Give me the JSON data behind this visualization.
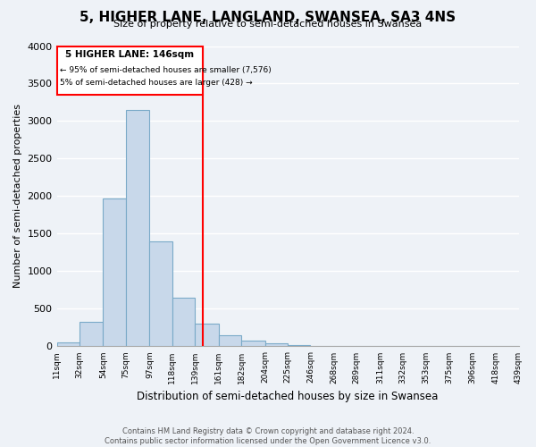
{
  "title": "5, HIGHER LANE, LANGLAND, SWANSEA, SA3 4NS",
  "subtitle": "Size of property relative to semi-detached houses in Swansea",
  "xlabel": "Distribution of semi-detached houses by size in Swansea",
  "ylabel": "Number of semi-detached properties",
  "bin_edges": [
    11,
    32,
    54,
    75,
    97,
    118,
    139,
    161,
    182,
    204,
    225,
    246,
    268,
    289,
    311,
    332,
    353,
    375,
    396,
    418,
    439
  ],
  "bar_heights": [
    50,
    325,
    1975,
    3150,
    1400,
    650,
    300,
    150,
    75,
    40,
    15,
    5,
    2,
    1,
    0,
    0,
    0,
    0,
    0,
    0
  ],
  "bar_color": "#c8d8ea",
  "bar_edgecolor": "#7aaac8",
  "vline_x": 146,
  "vline_color": "red",
  "pct_smaller": 95,
  "count_smaller": 7576,
  "pct_larger": 5,
  "count_larger": 428,
  "annotation_label": "5 HIGHER LANE: 146sqm",
  "box_color": "red",
  "ylim": [
    0,
    4000
  ],
  "yticks": [
    0,
    500,
    1000,
    1500,
    2000,
    2500,
    3000,
    3500,
    4000
  ],
  "background_color": "#eef2f7",
  "grid_color": "white",
  "footer_line1": "Contains HM Land Registry data © Crown copyright and database right 2024.",
  "footer_line2": "Contains public sector information licensed under the Open Government Licence v3.0."
}
